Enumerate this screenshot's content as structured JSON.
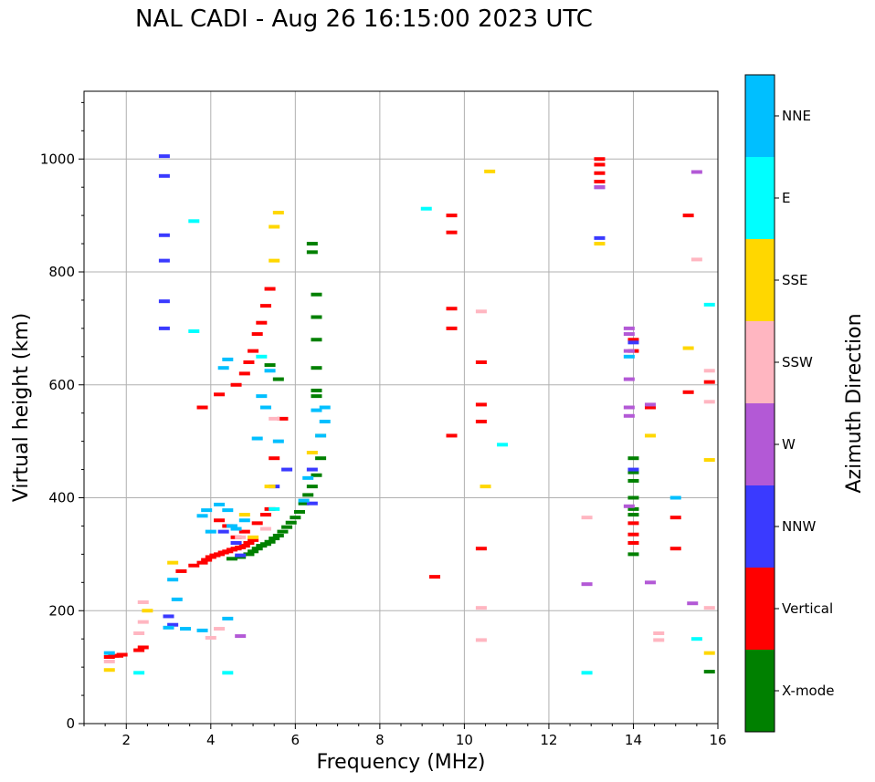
{
  "chart_data": {
    "type": "scatter",
    "title": "NAL CADI - Aug 26 16:15:00 2023 UTC",
    "xlabel": "Frequency (MHz)",
    "ylabel": "Virtual height (km)",
    "xlim": [
      1,
      16
    ],
    "ylim": [
      0,
      1120
    ],
    "xticks": [
      2,
      4,
      6,
      8,
      10,
      12,
      14,
      16
    ],
    "yticks": [
      0,
      200,
      400,
      600,
      800,
      1000
    ],
    "grid": true,
    "colorbar": {
      "label": "Azimuth Direction",
      "categories": [
        {
          "name": "X-mode",
          "color": "#008000"
        },
        {
          "name": "Vertical",
          "color": "#ff0000"
        },
        {
          "name": "NNW",
          "color": "#3a3aff"
        },
        {
          "name": "W",
          "color": "#b359d6"
        },
        {
          "name": "SSW",
          "color": "#ffb6c1"
        },
        {
          "name": "SSE",
          "color": "#ffd700"
        },
        {
          "name": "E",
          "color": "#00ffff"
        },
        {
          "name": "NNE",
          "color": "#00bfff"
        }
      ]
    },
    "series": [
      {
        "name": "X-mode",
        "points": [
          [
            4.9,
            300
          ],
          [
            5.0,
            305
          ],
          [
            5.1,
            310
          ],
          [
            5.2,
            315
          ],
          [
            5.3,
            318
          ],
          [
            5.4,
            322
          ],
          [
            5.5,
            328
          ],
          [
            5.6,
            333
          ],
          [
            5.7,
            340
          ],
          [
            5.8,
            348
          ],
          [
            5.9,
            356
          ],
          [
            6.0,
            365
          ],
          [
            6.1,
            375
          ],
          [
            6.2,
            390
          ],
          [
            6.3,
            405
          ],
          [
            6.4,
            420
          ],
          [
            6.5,
            440
          ],
          [
            6.6,
            470
          ],
          [
            4.7,
            295
          ],
          [
            4.5,
            292
          ],
          [
            6.4,
            835
          ],
          [
            6.4,
            850
          ],
          [
            6.5,
            760
          ],
          [
            6.5,
            720
          ],
          [
            6.5,
            680
          ],
          [
            6.5,
            630
          ],
          [
            6.5,
            590
          ],
          [
            6.5,
            580
          ],
          [
            5.6,
            610
          ],
          [
            5.4,
            635
          ],
          [
            14.0,
            470
          ],
          [
            14.0,
            445
          ],
          [
            14.0,
            430
          ],
          [
            14.0,
            400
          ],
          [
            14.0,
            380
          ],
          [
            14.0,
            370
          ],
          [
            14.0,
            300
          ],
          [
            15.8,
            92
          ]
        ]
      },
      {
        "name": "Vertical",
        "points": [
          [
            1.6,
            118
          ],
          [
            1.7,
            120
          ],
          [
            1.8,
            120
          ],
          [
            1.9,
            122
          ],
          [
            2.3,
            130
          ],
          [
            2.4,
            135
          ],
          [
            3.3,
            270
          ],
          [
            3.6,
            280
          ],
          [
            3.8,
            285
          ],
          [
            3.9,
            290
          ],
          [
            4.0,
            295
          ],
          [
            4.1,
            298
          ],
          [
            4.2,
            300
          ],
          [
            4.3,
            303
          ],
          [
            4.4,
            305
          ],
          [
            4.5,
            308
          ],
          [
            4.6,
            310
          ],
          [
            4.7,
            312
          ],
          [
            4.8,
            315
          ],
          [
            4.9,
            320
          ],
          [
            5.0,
            325
          ],
          [
            3.8,
            560
          ],
          [
            4.2,
            583
          ],
          [
            4.6,
            600
          ],
          [
            4.8,
            620
          ],
          [
            4.9,
            640
          ],
          [
            5.0,
            660
          ],
          [
            5.1,
            690
          ],
          [
            5.2,
            710
          ],
          [
            5.3,
            740
          ],
          [
            5.4,
            770
          ],
          [
            4.2,
            360
          ],
          [
            4.4,
            350
          ],
          [
            4.6,
            330
          ],
          [
            4.8,
            340
          ],
          [
            5.1,
            355
          ],
          [
            5.3,
            370
          ],
          [
            5.4,
            380
          ],
          [
            5.5,
            470
          ],
          [
            5.7,
            540
          ],
          [
            9.3,
            260
          ],
          [
            9.7,
            510
          ],
          [
            9.7,
            700
          ],
          [
            9.7,
            735
          ],
          [
            9.7,
            870
          ],
          [
            9.7,
            900
          ],
          [
            10.4,
            310
          ],
          [
            10.4,
            535
          ],
          [
            10.4,
            565
          ],
          [
            10.4,
            640
          ],
          [
            13.2,
            960
          ],
          [
            13.2,
            975
          ],
          [
            13.2,
            990
          ],
          [
            13.2,
            1000
          ],
          [
            14.0,
            335
          ],
          [
            14.0,
            355
          ],
          [
            14.0,
            320
          ],
          [
            14.0,
            680
          ],
          [
            14.0,
            660
          ],
          [
            14.4,
            560
          ],
          [
            15.0,
            365
          ],
          [
            15.0,
            310
          ],
          [
            15.3,
            587
          ],
          [
            15.3,
            900
          ],
          [
            15.8,
            605
          ]
        ]
      },
      {
        "name": "NNW",
        "points": [
          [
            2.9,
            1005
          ],
          [
            2.9,
            970
          ],
          [
            2.9,
            865
          ],
          [
            2.9,
            820
          ],
          [
            2.9,
            748
          ],
          [
            2.9,
            700
          ],
          [
            3.0,
            190
          ],
          [
            3.1,
            175
          ],
          [
            4.3,
            340
          ],
          [
            4.6,
            320
          ],
          [
            4.7,
            298
          ],
          [
            5.5,
            420
          ],
          [
            5.8,
            450
          ],
          [
            6.4,
            390
          ],
          [
            6.4,
            450
          ],
          [
            13.2,
            860
          ],
          [
            13.2,
            950
          ],
          [
            14.0,
            450
          ],
          [
            14.0,
            675
          ]
        ]
      },
      {
        "name": "W",
        "points": [
          [
            4.7,
            155
          ],
          [
            13.2,
            950
          ],
          [
            13.9,
            700
          ],
          [
            13.9,
            690
          ],
          [
            13.9,
            660
          ],
          [
            13.9,
            610
          ],
          [
            13.9,
            560
          ],
          [
            13.9,
            545
          ],
          [
            13.9,
            385
          ],
          [
            14.4,
            250
          ],
          [
            14.4,
            565
          ],
          [
            12.9,
            247
          ],
          [
            15.4,
            213
          ],
          [
            15.5,
            977
          ]
        ]
      },
      {
        "name": "SSW",
        "points": [
          [
            1.6,
            110
          ],
          [
            2.3,
            160
          ],
          [
            2.4,
            180
          ],
          [
            2.4,
            215
          ],
          [
            4.0,
            152
          ],
          [
            4.2,
            168
          ],
          [
            4.7,
            330
          ],
          [
            5.3,
            345
          ],
          [
            5.5,
            540
          ],
          [
            10.4,
            148
          ],
          [
            10.4,
            205
          ],
          [
            10.4,
            730
          ],
          [
            12.9,
            365
          ],
          [
            14.6,
            160
          ],
          [
            14.6,
            148
          ],
          [
            15.5,
            822
          ],
          [
            15.8,
            570
          ],
          [
            15.8,
            625
          ],
          [
            15.8,
            205
          ]
        ]
      },
      {
        "name": "SSE",
        "points": [
          [
            1.6,
            95
          ],
          [
            2.5,
            200
          ],
          [
            3.1,
            285
          ],
          [
            4.8,
            370
          ],
          [
            5.0,
            330
          ],
          [
            5.4,
            420
          ],
          [
            5.5,
            880
          ],
          [
            5.5,
            820
          ],
          [
            5.6,
            905
          ],
          [
            6.4,
            480
          ],
          [
            6.6,
            510
          ],
          [
            10.5,
            420
          ],
          [
            10.6,
            978
          ],
          [
            13.2,
            850
          ],
          [
            14.4,
            510
          ],
          [
            15.3,
            665
          ],
          [
            15.8,
            125
          ],
          [
            15.8,
            467
          ]
        ]
      },
      {
        "name": "E",
        "points": [
          [
            2.3,
            90
          ],
          [
            3.6,
            890
          ],
          [
            3.6,
            695
          ],
          [
            4.4,
            90
          ],
          [
            5.2,
            650
          ],
          [
            9.1,
            912
          ],
          [
            10.9,
            494
          ],
          [
            12.9,
            90
          ],
          [
            15.5,
            150
          ],
          [
            15.8,
            742
          ],
          [
            5.5,
            380
          ]
        ]
      },
      {
        "name": "NNE",
        "points": [
          [
            1.6,
            125
          ],
          [
            3.1,
            255
          ],
          [
            3.0,
            170
          ],
          [
            3.2,
            220
          ],
          [
            3.4,
            168
          ],
          [
            3.8,
            368
          ],
          [
            3.9,
            378
          ],
          [
            4.0,
            340
          ],
          [
            4.2,
            388
          ],
          [
            4.4,
            378
          ],
          [
            4.5,
            350
          ],
          [
            4.6,
            345
          ],
          [
            4.8,
            360
          ],
          [
            5.1,
            505
          ],
          [
            5.2,
            580
          ],
          [
            5.3,
            560
          ],
          [
            5.4,
            625
          ],
          [
            5.6,
            500
          ],
          [
            6.2,
            395
          ],
          [
            6.3,
            435
          ],
          [
            6.5,
            555
          ],
          [
            6.6,
            510
          ],
          [
            6.7,
            535
          ],
          [
            6.7,
            560
          ],
          [
            4.4,
            645
          ],
          [
            4.3,
            630
          ],
          [
            3.8,
            165
          ],
          [
            4.4,
            186
          ],
          [
            15.0,
            400
          ],
          [
            13.9,
            650
          ]
        ]
      }
    ]
  }
}
